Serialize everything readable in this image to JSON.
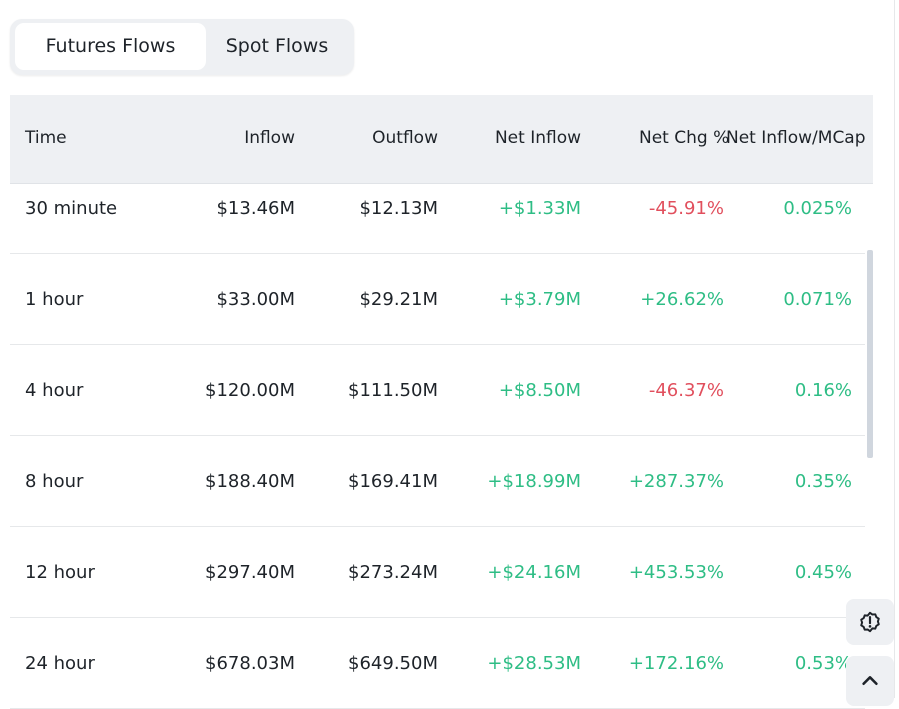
{
  "tabs": [
    {
      "label": "Futures Flows",
      "active": true
    },
    {
      "label": "Spot Flows",
      "active": false
    }
  ],
  "table": {
    "headers": [
      "Time",
      "Inflow",
      "Outflow",
      "Net Inflow",
      "Net Chg %",
      "Net Inflow/MCap"
    ],
    "rows": [
      [
        "30 minute",
        "$13.46M",
        "$12.13M",
        "+$1.33M",
        "-45.91%",
        "0.025%"
      ],
      [
        "1 hour",
        "$33.00M",
        "$29.21M",
        "+$3.79M",
        "+26.62%",
        "0.071%"
      ],
      [
        "4 hour",
        "$120.00M",
        "$111.50M",
        "+$8.50M",
        "-46.37%",
        "0.16%"
      ],
      [
        "8 hour",
        "$188.40M",
        "$169.41M",
        "+$18.99M",
        "+287.37%",
        "0.35%"
      ],
      [
        "12 hour",
        "$297.40M",
        "$273.24M",
        "+$24.16M",
        "+453.53%",
        "0.45%"
      ],
      [
        "24 hour",
        "$678.03M",
        "$649.50M",
        "+$28.53M",
        "+172.16%",
        "0.53%"
      ]
    ]
  },
  "colors": {
    "positive": "#2ebd85",
    "negative": "#e14f5d"
  },
  "icons": {
    "feedback": "alert-badge-icon",
    "scroll_top": "chevron-up-icon"
  }
}
